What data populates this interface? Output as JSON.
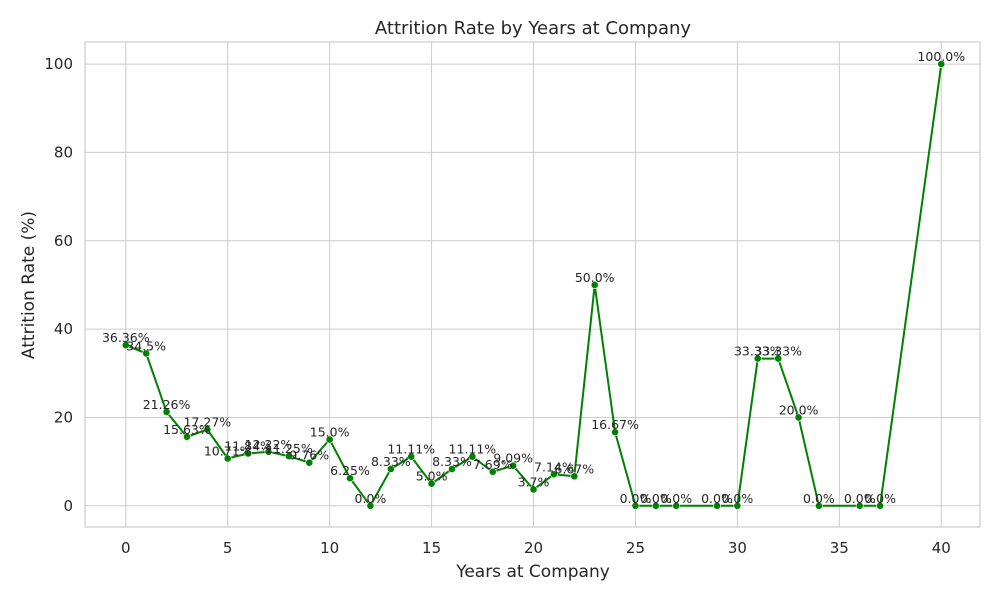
{
  "chart_data": {
    "type": "line",
    "title": "Attrition Rate by Years at Company",
    "xlabel": "Years at Company",
    "ylabel": "Attrition Rate (%)",
    "xlim": [
      -2,
      41.9
    ],
    "ylim": [
      -4.8,
      105
    ],
    "xticks": [
      0,
      5,
      10,
      15,
      20,
      25,
      30,
      35,
      40
    ],
    "yticks": [
      0,
      20,
      40,
      60,
      80,
      100
    ],
    "grid": true,
    "legend": "none",
    "color": "#008000",
    "marker": "circle",
    "series": [
      {
        "x": [
          0,
          1,
          2,
          3,
          4,
          5,
          6,
          7,
          8,
          9,
          10,
          11,
          12,
          13,
          14,
          15,
          16,
          17,
          18,
          19,
          20,
          21,
          22,
          23,
          24,
          25,
          26,
          27,
          29,
          30,
          31,
          32,
          33,
          34,
          36,
          37,
          40
        ],
        "y": [
          36.36,
          34.5,
          21.26,
          15.63,
          17.27,
          10.71,
          11.84,
          12.22,
          11.25,
          9.76,
          15.0,
          6.25,
          0.0,
          8.33,
          11.11,
          5.0,
          8.33,
          11.11,
          7.69,
          9.09,
          3.7,
          7.14,
          6.67,
          50.0,
          16.67,
          0.0,
          0.0,
          0.0,
          0.0,
          0.0,
          33.33,
          33.33,
          20.0,
          0.0,
          0.0,
          0.0,
          100.0
        ],
        "labels": [
          "36.36%",
          "34.5%",
          "21.26%",
          "15.63%",
          "17.27%",
          "10.71%",
          "11.84%",
          "12.22%",
          "11.25%",
          "9.76%",
          "15.0%",
          "6.25%",
          "0.0%",
          "8.33%",
          "11.11%",
          "5.0%",
          "8.33%",
          "11.11%",
          "7.69%",
          "9.09%",
          "3.7%",
          "7.14%",
          "6.67%",
          "50.0%",
          "16.67%",
          "0.0%",
          "0.0%",
          "0.0%",
          "0.0%",
          "0.0%",
          "33.33%",
          "33.33%",
          "20.0%",
          "0.0%",
          "0.0%",
          "0.0%",
          "100.0%"
        ]
      }
    ]
  }
}
